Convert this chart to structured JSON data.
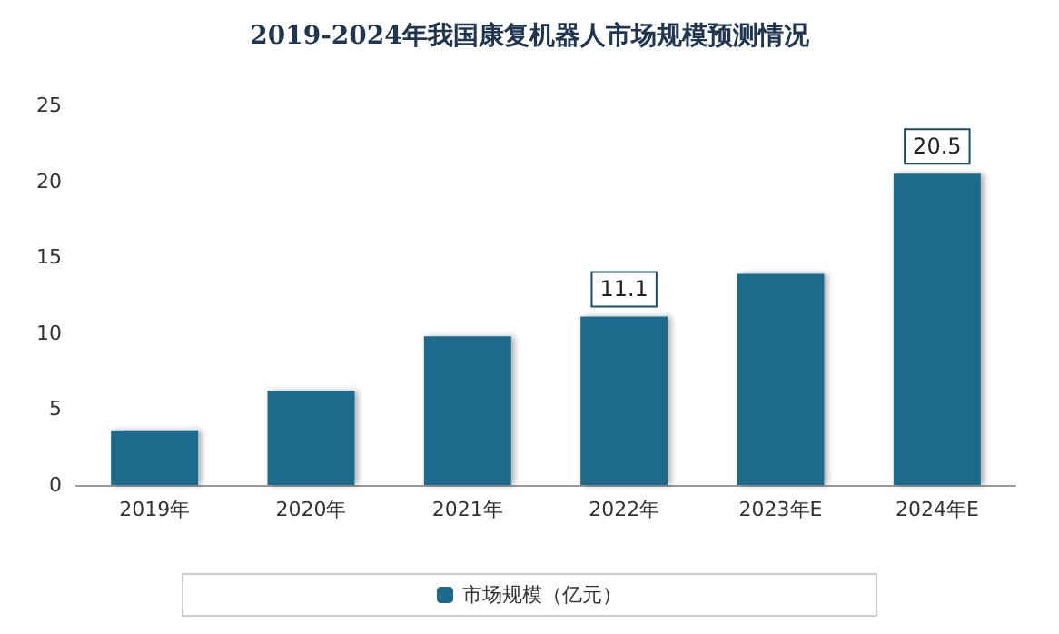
{
  "chart_data": {
    "type": "bar",
    "title": "2019-2024年我国康复机器人市场规模预测情况",
    "categories": [
      "2019年",
      "2020年",
      "2021年",
      "2022年",
      "2023年E",
      "2024年E"
    ],
    "series": [
      {
        "name": "市场规模（亿元）",
        "color": "#1b6a8c",
        "values": [
          3.6,
          6.2,
          9.8,
          11.1,
          13.9,
          20.5
        ],
        "value_labels": [
          null,
          null,
          null,
          "11.1",
          null,
          "20.5"
        ]
      }
    ],
    "ylim": [
      0,
      25
    ],
    "yticks": [
      0,
      5,
      10,
      15,
      20,
      25
    ],
    "grid": false,
    "legend": "bottom"
  }
}
